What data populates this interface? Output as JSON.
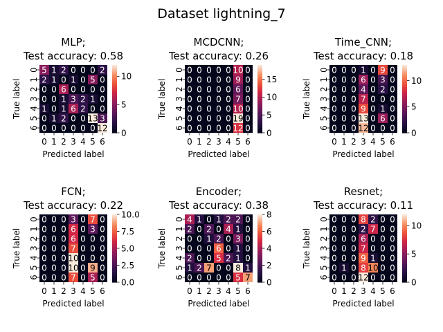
{
  "figure": {
    "suptitle": "Dataset lightning_7"
  },
  "chart_data": [
    {
      "type": "heatmap",
      "title_line1": "MLP;",
      "title_line2": "Test accuracy: 0.58",
      "xlabel": "Predicted label",
      "ylabel": "True label",
      "categories": [
        "0",
        "1",
        "2",
        "3",
        "4",
        "5",
        "6"
      ],
      "colorbar_ticks": [
        0,
        5,
        10
      ],
      "vmin": 0,
      "vmax": 12,
      "matrix": [
        [
          5,
          1,
          2,
          0,
          0,
          0,
          2
        ],
        [
          2,
          1,
          0,
          1,
          0,
          5,
          0
        ],
        [
          0,
          0,
          6,
          0,
          0,
          0,
          0
        ],
        [
          0,
          0,
          1,
          3,
          2,
          1,
          0
        ],
        [
          1,
          0,
          1,
          6,
          2,
          0,
          0
        ],
        [
          0,
          1,
          2,
          0,
          0,
          13,
          3
        ],
        [
          0,
          0,
          0,
          0,
          0,
          0,
          12
        ]
      ]
    },
    {
      "type": "heatmap",
      "title_line1": "MCDCNN;",
      "title_line2": "Test accuracy: 0.26",
      "xlabel": "Predicted label",
      "ylabel": "True label",
      "categories": [
        "0",
        "1",
        "2",
        "3",
        "4",
        "5",
        "6"
      ],
      "colorbar_ticks": [
        0,
        5,
        10,
        15
      ],
      "vmin": 0,
      "vmax": 19,
      "matrix": [
        [
          0,
          0,
          0,
          0,
          0,
          10,
          0
        ],
        [
          0,
          0,
          0,
          0,
          0,
          9,
          0
        ],
        [
          0,
          0,
          0,
          0,
          0,
          6,
          0
        ],
        [
          0,
          0,
          0,
          0,
          0,
          7,
          0
        ],
        [
          0,
          0,
          0,
          0,
          0,
          10,
          0
        ],
        [
          0,
          0,
          0,
          0,
          0,
          19,
          0
        ],
        [
          0,
          0,
          0,
          0,
          0,
          12,
          0
        ]
      ]
    },
    {
      "type": "heatmap",
      "title_line1": "Time_CNN;",
      "title_line2": "Test accuracy: 0.18",
      "xlabel": "Predicted label",
      "ylabel": "True label",
      "categories": [
        "0",
        "1",
        "2",
        "3",
        "4",
        "5",
        "6"
      ],
      "colorbar_ticks": [
        0,
        5,
        10
      ],
      "vmin": 0,
      "vmax": 13,
      "matrix": [
        [
          0,
          0,
          0,
          1,
          0,
          9,
          0
        ],
        [
          0,
          0,
          0,
          6,
          0,
          3,
          0
        ],
        [
          0,
          0,
          0,
          4,
          0,
          2,
          0
        ],
        [
          0,
          0,
          0,
          7,
          0,
          0,
          0
        ],
        [
          0,
          0,
          0,
          9,
          0,
          1,
          0
        ],
        [
          0,
          0,
          0,
          13,
          0,
          6,
          0
        ],
        [
          0,
          0,
          0,
          12,
          0,
          0,
          0
        ]
      ]
    },
    {
      "type": "heatmap",
      "title_line1": "FCN;",
      "title_line2": "Test accuracy: 0.22",
      "xlabel": "Predicted label",
      "ylabel": "True label",
      "categories": [
        "0",
        "1",
        "2",
        "3",
        "4",
        "5",
        "6"
      ],
      "colorbar_ticks": [
        "0.0",
        "2.5",
        "5.0",
        "7.5",
        "10.0"
      ],
      "vmin": 0,
      "vmax": 10,
      "matrix": [
        [
          0,
          0,
          0,
          3,
          0,
          7,
          0
        ],
        [
          0,
          0,
          0,
          6,
          0,
          3,
          0
        ],
        [
          0,
          0,
          0,
          6,
          0,
          0,
          0
        ],
        [
          0,
          0,
          0,
          7,
          0,
          0,
          0
        ],
        [
          0,
          0,
          0,
          10,
          0,
          0,
          0
        ],
        [
          0,
          0,
          0,
          10,
          0,
          9,
          0
        ],
        [
          0,
          0,
          0,
          7,
          0,
          5,
          0
        ]
      ]
    },
    {
      "type": "heatmap",
      "title_line1": "Encoder;",
      "title_line2": "Test accuracy: 0.38",
      "xlabel": "Predicted label",
      "ylabel": "True label",
      "categories": [
        "0",
        "1",
        "2",
        "3",
        "4",
        "5",
        "6"
      ],
      "colorbar_ticks": [
        0,
        2,
        4,
        6,
        8
      ],
      "vmin": 0,
      "vmax": 8,
      "matrix": [
        [
          4,
          1,
          0,
          1,
          2,
          2,
          0
        ],
        [
          2,
          0,
          2,
          0,
          4,
          1,
          0
        ],
        [
          0,
          0,
          1,
          2,
          0,
          3,
          0
        ],
        [
          0,
          0,
          0,
          6,
          0,
          1,
          0
        ],
        [
          2,
          0,
          0,
          5,
          2,
          1,
          0
        ],
        [
          1,
          2,
          7,
          0,
          0,
          8,
          1
        ],
        [
          0,
          0,
          0,
          0,
          0,
          5,
          7
        ]
      ]
    },
    {
      "type": "heatmap",
      "title_line1": "Resnet;",
      "title_line2": "Test accuracy: 0.11",
      "xlabel": "Predicted label",
      "ylabel": "True label",
      "categories": [
        "0",
        "1",
        "2",
        "3",
        "4",
        "5",
        "6"
      ],
      "colorbar_ticks": [
        0,
        5,
        10
      ],
      "vmin": 0,
      "vmax": 12,
      "matrix": [
        [
          0,
          0,
          0,
          8,
          2,
          0,
          0
        ],
        [
          0,
          0,
          0,
          2,
          7,
          0,
          0
        ],
        [
          0,
          0,
          0,
          6,
          0,
          0,
          0
        ],
        [
          0,
          0,
          0,
          7,
          0,
          0,
          0
        ],
        [
          0,
          0,
          0,
          9,
          1,
          0,
          0
        ],
        [
          0,
          1,
          0,
          8,
          10,
          0,
          0
        ],
        [
          0,
          0,
          0,
          12,
          0,
          0,
          0
        ]
      ]
    }
  ]
}
